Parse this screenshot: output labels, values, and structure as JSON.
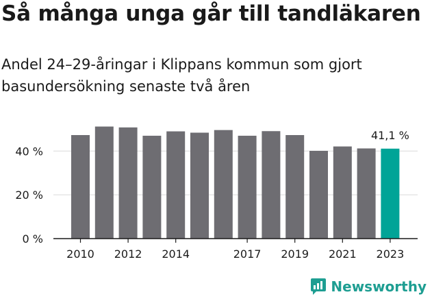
{
  "title": "Så många unga går till tandläkaren",
  "subtitle": "Andel 24–29-åringar i Klippans kommun som gjort basundersökning senaste två åren",
  "brand": {
    "name": "Newsworthy",
    "icon": "newsworthy-logo-icon",
    "color": "#1e9e92"
  },
  "chart_data": {
    "type": "bar",
    "categories": [
      "2010",
      "2011",
      "2012",
      "2013",
      "2014",
      "2015",
      "2016",
      "2017",
      "2018",
      "2019",
      "2020",
      "2021",
      "2022",
      "2023"
    ],
    "values": [
      47.3,
      51.2,
      50.8,
      47.0,
      49.0,
      48.4,
      49.6,
      47.0,
      49.1,
      47.3,
      40.1,
      42.1,
      41.2,
      41.1
    ],
    "xticks": [
      "2010",
      "2012",
      "2014",
      "2017",
      "2019",
      "2021",
      "2023"
    ],
    "yticks": [
      0,
      20,
      40
    ],
    "ytick_labels": [
      "0 %",
      "20 %",
      "40 %"
    ],
    "ylim": [
      0,
      52
    ],
    "annotation": {
      "category": "2023",
      "text": "41,1 %"
    },
    "highlight": "2023",
    "colors": {
      "bar": "#6e6d72",
      "highlight": "#00a497",
      "grid": "#d9d9d9",
      "axis": "#1a1a1a"
    },
    "grid": true,
    "xlabel": "",
    "ylabel": ""
  }
}
